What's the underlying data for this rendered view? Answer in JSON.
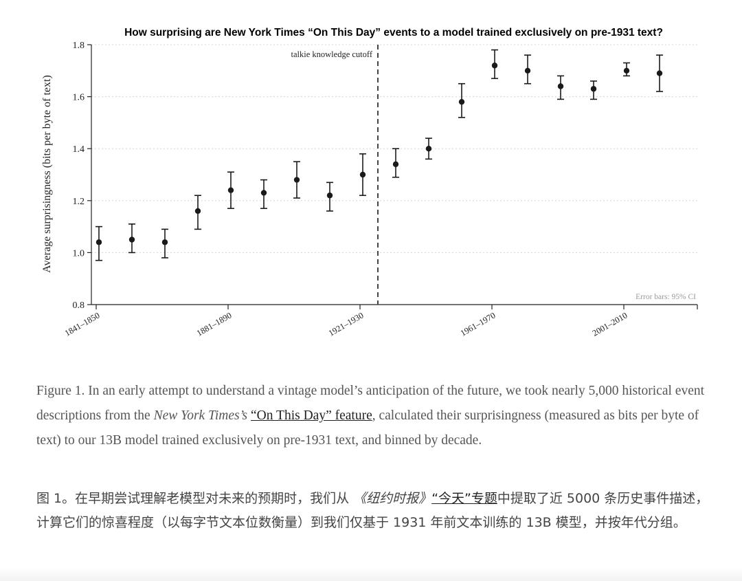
{
  "chart_data": {
    "type": "scatter",
    "title": "How surprising are New York Times “On This Day” events to a model trained exclusively on pre-1931 text?",
    "ylabel": "Average surprisingness (bits per byte of text)",
    "xlabel": "",
    "ylim": [
      0.8,
      1.8
    ],
    "yticks": [
      0.8,
      1.0,
      1.2,
      1.4,
      1.6,
      1.8
    ],
    "categories": [
      "1841–1850",
      "1851–1860",
      "1861–1870",
      "1871–1880",
      "1881–1890",
      "1891–1900",
      "1901–1910",
      "1911–1920",
      "1921–1930",
      "1931–1940",
      "1941–1950",
      "1951–1960",
      "1961–1970",
      "1971–1980",
      "1981–1990",
      "1991–2000",
      "2001–2010",
      "2011–2020"
    ],
    "xtick_labels": [
      "1841–1850",
      "1881–1890",
      "1921–1930",
      "1961–1970",
      "2001–2010"
    ],
    "xtick_indices": [
      0,
      4,
      8,
      12,
      16
    ],
    "values": [
      1.04,
      1.05,
      1.04,
      1.16,
      1.24,
      1.23,
      1.28,
      1.22,
      1.3,
      1.34,
      1.4,
      1.58,
      1.72,
      1.7,
      1.64,
      1.63,
      1.7,
      1.69
    ],
    "ci_low": [
      0.97,
      1.0,
      0.98,
      1.09,
      1.17,
      1.17,
      1.21,
      1.16,
      1.22,
      1.29,
      1.36,
      1.52,
      1.67,
      1.65,
      1.59,
      1.59,
      1.68,
      1.62
    ],
    "ci_high": [
      1.1,
      1.11,
      1.09,
      1.22,
      1.31,
      1.28,
      1.35,
      1.27,
      1.38,
      1.4,
      1.44,
      1.65,
      1.78,
      1.76,
      1.68,
      1.66,
      1.73,
      1.76
    ],
    "cutoff_after_index": 8,
    "cutoff_label": "talkie knowledge cutoff",
    "ci_note": "Error bars: 95% CI",
    "grid": "horizontal dotted",
    "point_color": "#1a1a1a"
  },
  "caption_en": {
    "prefix": "Figure 1. In an early attempt to understand a vintage model’s anticipation of the future, we took nearly 5,000 historical event descriptions from the ",
    "source_italic": "New York Times’s",
    "space": " ",
    "link": "“On This Day” feature",
    "suffix": ", calculated their surprisingness (measured as bits per byte of text) to our 13B model trained exclusively on pre-1931 text, and binned by decade."
  },
  "caption_zh": {
    "prefix": "图 1。在早期尝试理解老模型对未来的预期时，我们从 ",
    "source_italic": "《纽约时报》",
    "link": "“今天”专题",
    "suffix": "中提取了近 5000 条历史事件描述，计算它们的惊喜程度（以每字节文本位数衡量）到我们仅基于 1931 年前文本训练的 13B 模型，并按年代分组。"
  }
}
